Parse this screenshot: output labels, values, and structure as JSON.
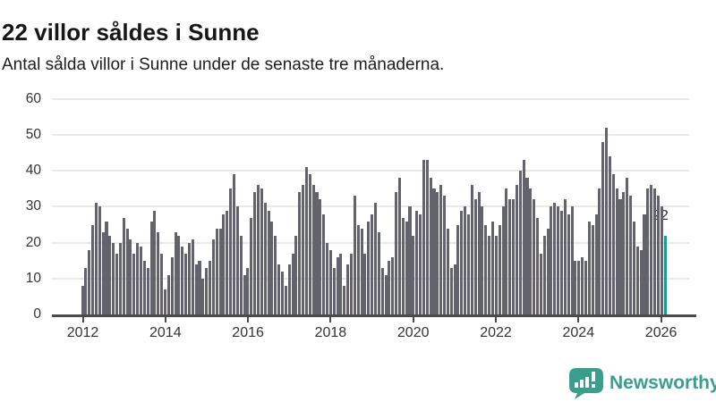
{
  "header": {
    "title": "22 villor såldes i Sunne",
    "subtitle": "Antal sålda villor i Sunne under de senaste tre månaderna."
  },
  "chart_data": {
    "type": "bar",
    "title": "22 villor såldes i Sunne",
    "subtitle": "Antal sålda villor i Sunne under de senaste tre månaderna.",
    "frequency": "monthly",
    "x_start": "2012-01",
    "x_end": "2026-02",
    "values": [
      8,
      13,
      18,
      25,
      31,
      30,
      23,
      26,
      22,
      20,
      17,
      20,
      27,
      24,
      21,
      17,
      20,
      19,
      15,
      13,
      26,
      29,
      23,
      17,
      7,
      11,
      16,
      23,
      22,
      19,
      17,
      20,
      21,
      14,
      15,
      10,
      13,
      15,
      21,
      24,
      24,
      28,
      29,
      35,
      39,
      30,
      22,
      11,
      13,
      27,
      34,
      36,
      35,
      31,
      29,
      26,
      22,
      14,
      12,
      8,
      14,
      17,
      22,
      34,
      36,
      41,
      39,
      36,
      34,
      32,
      28,
      20,
      18,
      13,
      16,
      17,
      8,
      14,
      17,
      33,
      25,
      24,
      17,
      26,
      28,
      31,
      23,
      13,
      11,
      15,
      16,
      34,
      38,
      27,
      26,
      30,
      22,
      29,
      28,
      43,
      43,
      38,
      35,
      34,
      36,
      33,
      24,
      13,
      14,
      25,
      29,
      30,
      28,
      36,
      32,
      34,
      30,
      25,
      22,
      26,
      22,
      25,
      30,
      35,
      32,
      32,
      36,
      40,
      43,
      38,
      35,
      32,
      27,
      17,
      22,
      24,
      30,
      31,
      30,
      29,
      32,
      28,
      30,
      15,
      15,
      16,
      15,
      26,
      25,
      28,
      35,
      48,
      52,
      44,
      39,
      35,
      32,
      34,
      38,
      33,
      26,
      19,
      18,
      28,
      35,
      36,
      35,
      33,
      30,
      22
    ],
    "highlight": {
      "index": 169,
      "value": 22,
      "label": "22",
      "color": "#00a59e"
    },
    "annotation": "22",
    "bar_color": "#63636d",
    "yticks": [
      0,
      10,
      20,
      30,
      40,
      50,
      60
    ],
    "ylim": [
      0,
      60
    ],
    "xtick_labels": [
      "2012",
      "2014",
      "2016",
      "2018",
      "2020",
      "2022",
      "2024",
      "2026"
    ],
    "grid": "horizontal",
    "legend": "none"
  },
  "footer": {
    "brand": "Newsworthy",
    "logo_color": "#3a9e8e"
  }
}
